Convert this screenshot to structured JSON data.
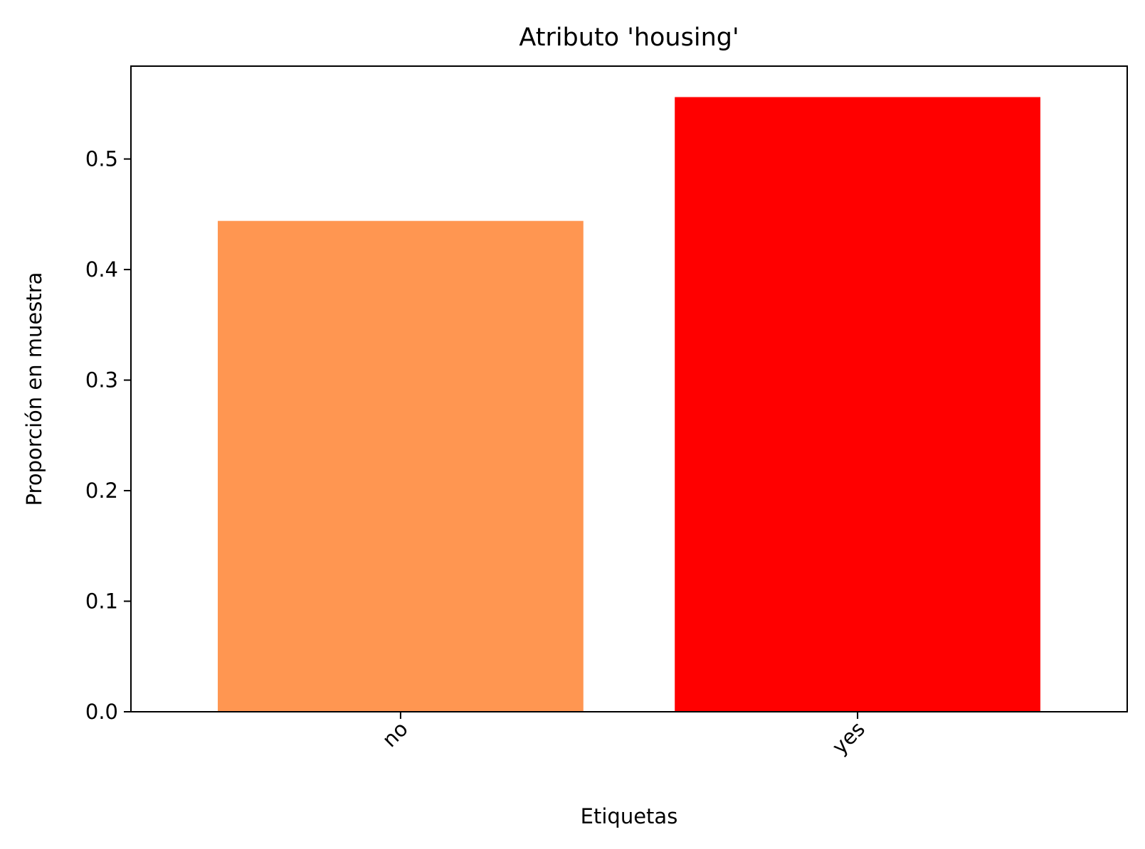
{
  "chart_data": {
    "type": "bar",
    "title": "Atributo 'housing'",
    "xlabel": "Etiquetas",
    "ylabel": "Proporción en muestra",
    "categories": [
      "no",
      "yes"
    ],
    "values": [
      0.444,
      0.556
    ],
    "colors": [
      "#ff9651",
      "#ff0000"
    ],
    "ylim": [
      0,
      0.584
    ],
    "yticks": [
      0.0,
      0.1,
      0.2,
      0.3,
      0.4,
      0.5
    ],
    "ytick_labels": [
      "0.0",
      "0.1",
      "0.2",
      "0.3",
      "0.4",
      "0.5"
    ],
    "xtick_rotation": -45,
    "grid": false,
    "legend": "none"
  }
}
